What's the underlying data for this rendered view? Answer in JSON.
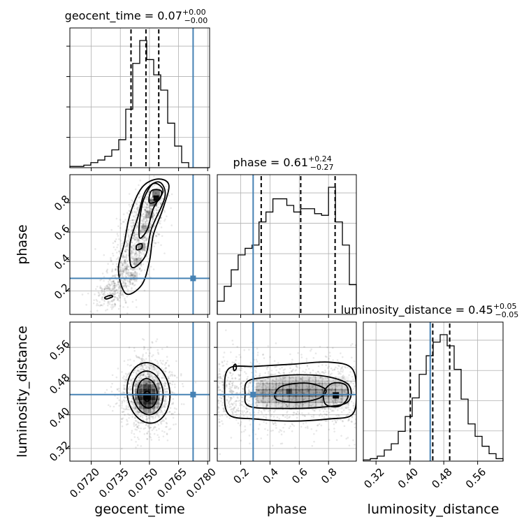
{
  "chart_data": {
    "type": "corner",
    "parameters": [
      {
        "name": "geocent_time",
        "axis_label": "geocent_time",
        "title": "geocent_time = 0.07",
        "median": "0.07",
        "err_plus": "+0.00",
        "err_minus": "−0.00",
        "range": [
          0.0709,
          0.0781
        ],
        "ticks": [
          0.072,
          0.0735,
          0.075,
          0.0765,
          0.078
        ],
        "tick_labels": [
          "0.0720",
          "0.0735",
          "0.0750",
          "0.0765",
          "0.0780"
        ],
        "quantiles": [
          0.07405,
          0.07482,
          0.07548
        ],
        "truth": 0.07725,
        "histogram": {
          "edges_start": 0.0709,
          "bin_width": 0.00036,
          "counts": [
            1,
            1,
            2,
            4,
            6,
            9,
            14,
            22,
            46,
            82,
            100,
            85,
            73,
            61,
            35,
            17,
            4,
            0,
            0,
            0
          ]
        }
      },
      {
        "name": "phase",
        "axis_label": "phase",
        "title": "phase = 0.61",
        "median": "0.61",
        "err_plus": "+0.24",
        "err_minus": "−0.27",
        "range": [
          0.04,
          0.99
        ],
        "ticks": [
          0.2,
          0.4,
          0.6,
          0.8
        ],
        "tick_labels": [
          "0.2",
          "0.4",
          "0.6",
          "0.8"
        ],
        "quantiles": [
          0.34,
          0.61,
          0.845
        ],
        "truth": 0.285,
        "histogram": {
          "edges_start": 0.04,
          "bin_width": 0.0475,
          "counts": [
            8,
            17,
            27,
            36,
            40,
            42,
            56,
            62,
            70,
            70,
            66,
            62,
            64,
            64,
            61,
            60,
            77,
            56,
            42,
            18
          ]
        }
      },
      {
        "name": "luminosity_distance",
        "axis_label": "luminosity_distance",
        "title": "luminosity_distance = 0.45",
        "median": "0.45",
        "err_plus": "+0.05",
        "err_minus": "−0.05",
        "range": [
          0.29,
          0.62
        ],
        "ticks": [
          0.32,
          0.4,
          0.48,
          0.56
        ],
        "tick_labels": [
          "0.32",
          "0.40",
          "0.48",
          "0.56"
        ],
        "quantiles": [
          0.401,
          0.454,
          0.494
        ],
        "truth": 0.448,
        "histogram": {
          "edges_start": 0.29,
          "bin_width": 0.0165,
          "counts": [
            1,
            2,
            4,
            9,
            14,
            24,
            36,
            51,
            70,
            85,
            96,
            102,
            93,
            74,
            50,
            30,
            20,
            12,
            6,
            2
          ]
        }
      }
    ],
    "pairs": [
      {
        "x": "geocent_time",
        "y": "phase",
        "ytick_labels": [
          "0.2",
          "0.4",
          "0.6",
          "0.8"
        ],
        "ridge": [
          [
            0.0727,
            0.12
          ],
          [
            0.0738,
            0.3
          ],
          [
            0.0742,
            0.5
          ],
          [
            0.0747,
            0.68
          ],
          [
            0.0752,
            0.85
          ]
        ],
        "density_peak": [
          0.07535,
          0.83
        ],
        "truth": [
          0.07725,
          0.285
        ]
      },
      {
        "x": "geocent_time",
        "y": "luminosity_distance",
        "density_peak": [
          0.07488,
          0.443
        ],
        "truth": [
          0.07725,
          0.448
        ]
      },
      {
        "x": "phase",
        "y": "luminosity_distance",
        "density_peak": [
          0.85,
          0.446
        ],
        "truth": [
          0.285,
          0.448
        ]
      }
    ],
    "ytick_labels_ld": [
      "0.32",
      "0.40",
      "0.48",
      "0.56"
    ],
    "grid": true,
    "colors": {
      "line": "#000000",
      "truth": "#4682b4",
      "grid": "#b0b0b0"
    }
  }
}
